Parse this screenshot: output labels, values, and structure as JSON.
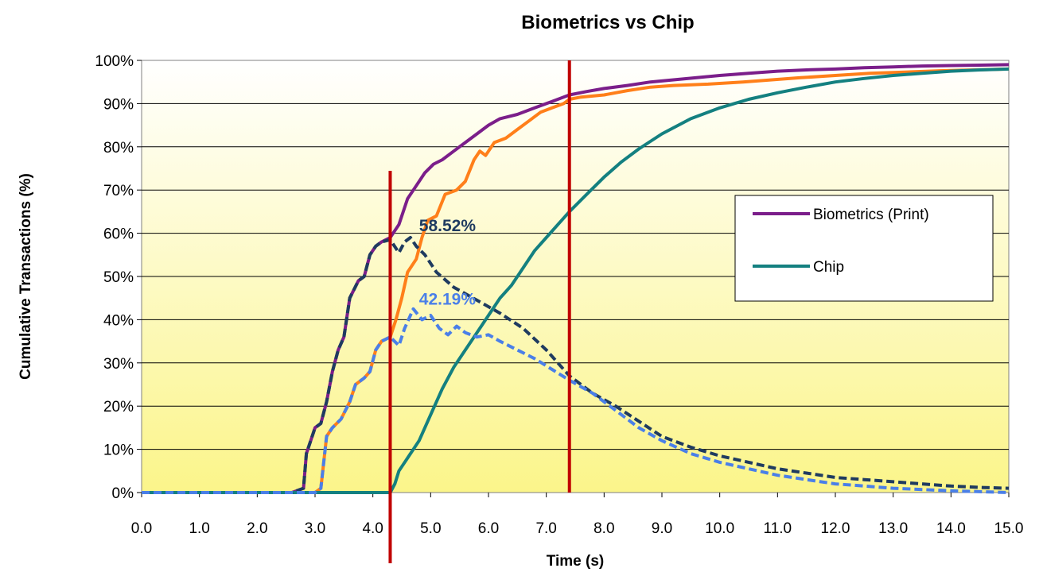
{
  "chart_data": {
    "type": "line",
    "title": "Biometrics vs Chip",
    "xlabel": "Time (s)",
    "ylabel": "Cumulative Transactions (%)",
    "xlim": [
      0,
      15
    ],
    "ylim": [
      0,
      100
    ],
    "x_ticks": [
      "0.0",
      "1.0",
      "2.0",
      "3.0",
      "4.0",
      "5.0",
      "6.0",
      "7.0",
      "8.0",
      "9.0",
      "10.0",
      "11.0",
      "12.0",
      "13.0",
      "14.0",
      "15.0"
    ],
    "y_ticks": [
      "0%",
      "10%",
      "20%",
      "30%",
      "40%",
      "50%",
      "60%",
      "70%",
      "80%",
      "90%",
      "100%"
    ],
    "grid": "horizontal",
    "legend_position": "right",
    "legend": [
      "Biometrics (Print)",
      "Chip"
    ],
    "series": [
      {
        "name": "Biometrics (Print)",
        "color": "#7B1E8A",
        "style": "solid",
        "points": [
          [
            0,
            0
          ],
          [
            2.6,
            0
          ],
          [
            2.8,
            1
          ],
          [
            2.85,
            9
          ],
          [
            3.0,
            15
          ],
          [
            3.1,
            16
          ],
          [
            3.2,
            21
          ],
          [
            3.3,
            28
          ],
          [
            3.4,
            33
          ],
          [
            3.5,
            36
          ],
          [
            3.6,
            45
          ],
          [
            3.75,
            49
          ],
          [
            3.85,
            50
          ],
          [
            3.95,
            55
          ],
          [
            4.05,
            57
          ],
          [
            4.15,
            58
          ],
          [
            4.3,
            59
          ],
          [
            4.45,
            62
          ],
          [
            4.6,
            68
          ],
          [
            4.75,
            71
          ],
          [
            4.9,
            74
          ],
          [
            5.05,
            76
          ],
          [
            5.2,
            77
          ],
          [
            5.4,
            79
          ],
          [
            5.6,
            81
          ],
          [
            5.8,
            83
          ],
          [
            6.0,
            85
          ],
          [
            6.2,
            86.5
          ],
          [
            6.5,
            87.5
          ],
          [
            6.8,
            89
          ],
          [
            7.1,
            90.5
          ],
          [
            7.4,
            92
          ],
          [
            7.7,
            92.8
          ],
          [
            8.0,
            93.5
          ],
          [
            8.4,
            94.2
          ],
          [
            8.8,
            95
          ],
          [
            9.2,
            95.5
          ],
          [
            9.6,
            96
          ],
          [
            10.0,
            96.5
          ],
          [
            10.5,
            97
          ],
          [
            11.0,
            97.5
          ],
          [
            11.5,
            97.8
          ],
          [
            12.0,
            98
          ],
          [
            12.5,
            98.3
          ],
          [
            13.0,
            98.5
          ],
          [
            13.5,
            98.7
          ],
          [
            14.0,
            98.8
          ],
          [
            14.5,
            98.9
          ],
          [
            15.0,
            99
          ]
        ]
      },
      {
        "name": "",
        "color": "#FF7F1A",
        "style": "solid",
        "points": [
          [
            0,
            0
          ],
          [
            3.0,
            0
          ],
          [
            3.1,
            1
          ],
          [
            3.2,
            13
          ],
          [
            3.3,
            15
          ],
          [
            3.45,
            17
          ],
          [
            3.6,
            21
          ],
          [
            3.7,
            25
          ],
          [
            3.85,
            26.5
          ],
          [
            3.95,
            28
          ],
          [
            4.05,
            33
          ],
          [
            4.15,
            35
          ],
          [
            4.3,
            36
          ],
          [
            4.4,
            40
          ],
          [
            4.5,
            45
          ],
          [
            4.6,
            51
          ],
          [
            4.75,
            54
          ],
          [
            4.85,
            59
          ],
          [
            4.95,
            63
          ],
          [
            5.1,
            64
          ],
          [
            5.25,
            69
          ],
          [
            5.45,
            70
          ],
          [
            5.6,
            72
          ],
          [
            5.75,
            77
          ],
          [
            5.85,
            79
          ],
          [
            5.95,
            78
          ],
          [
            6.1,
            81
          ],
          [
            6.3,
            82
          ],
          [
            6.5,
            84
          ],
          [
            6.7,
            86
          ],
          [
            6.9,
            88
          ],
          [
            7.1,
            89
          ],
          [
            7.3,
            90
          ],
          [
            7.4,
            91
          ],
          [
            7.6,
            91.5
          ],
          [
            8.0,
            92
          ],
          [
            8.4,
            93
          ],
          [
            8.8,
            93.8
          ],
          [
            9.2,
            94.2
          ],
          [
            9.8,
            94.5
          ],
          [
            10.4,
            95
          ],
          [
            10.9,
            95.5
          ],
          [
            11.4,
            96
          ],
          [
            12.0,
            96.5
          ],
          [
            12.6,
            97
          ],
          [
            13.2,
            97.3
          ],
          [
            13.8,
            97.6
          ],
          [
            14.4,
            97.8
          ],
          [
            15.0,
            98
          ]
        ]
      },
      {
        "name": "Chip",
        "color": "#148080",
        "style": "solid",
        "points": [
          [
            0,
            0
          ],
          [
            4.3,
            0
          ],
          [
            4.38,
            2
          ],
          [
            4.45,
            5
          ],
          [
            4.6,
            8
          ],
          [
            4.8,
            12
          ],
          [
            5.0,
            18
          ],
          [
            5.2,
            24
          ],
          [
            5.4,
            29
          ],
          [
            5.6,
            33
          ],
          [
            5.8,
            37
          ],
          [
            6.0,
            41
          ],
          [
            6.2,
            45
          ],
          [
            6.4,
            48
          ],
          [
            6.6,
            52
          ],
          [
            6.8,
            56
          ],
          [
            7.0,
            59
          ],
          [
            7.2,
            62
          ],
          [
            7.4,
            65
          ],
          [
            7.7,
            69
          ],
          [
            8.0,
            73
          ],
          [
            8.3,
            76.5
          ],
          [
            8.6,
            79.5
          ],
          [
            9.0,
            83
          ],
          [
            9.5,
            86.5
          ],
          [
            10.0,
            89
          ],
          [
            10.5,
            91
          ],
          [
            11.0,
            92.5
          ],
          [
            11.5,
            93.8
          ],
          [
            12.0,
            95
          ],
          [
            12.5,
            95.8
          ],
          [
            13.0,
            96.5
          ],
          [
            13.5,
            97
          ],
          [
            14.0,
            97.5
          ],
          [
            14.5,
            97.8
          ],
          [
            15.0,
            98
          ]
        ]
      },
      {
        "name": "",
        "color": "#1F3B60",
        "style": "dashed",
        "points": [
          [
            0,
            0
          ],
          [
            2.6,
            0
          ],
          [
            2.8,
            1
          ],
          [
            2.85,
            9
          ],
          [
            3.0,
            15
          ],
          [
            3.1,
            16
          ],
          [
            3.2,
            21
          ],
          [
            3.3,
            28
          ],
          [
            3.4,
            33
          ],
          [
            3.5,
            36
          ],
          [
            3.6,
            45
          ],
          [
            3.75,
            49
          ],
          [
            3.85,
            50
          ],
          [
            3.95,
            55
          ],
          [
            4.05,
            57
          ],
          [
            4.15,
            58
          ],
          [
            4.3,
            58.5
          ],
          [
            4.45,
            55.5
          ],
          [
            4.55,
            58
          ],
          [
            4.65,
            59
          ],
          [
            4.75,
            57
          ],
          [
            4.9,
            55
          ],
          [
            5.1,
            51
          ],
          [
            5.4,
            47.5
          ],
          [
            5.8,
            44.5
          ],
          [
            6.2,
            41.5
          ],
          [
            6.6,
            38
          ],
          [
            7.0,
            33
          ],
          [
            7.4,
            27
          ],
          [
            7.8,
            23
          ],
          [
            8.2,
            20
          ],
          [
            8.6,
            16.5
          ],
          [
            9.0,
            13
          ],
          [
            9.5,
            10.5
          ],
          [
            10.0,
            8.5
          ],
          [
            10.5,
            7
          ],
          [
            11.0,
            5.5
          ],
          [
            11.5,
            4.5
          ],
          [
            12.0,
            3.5
          ],
          [
            12.5,
            3
          ],
          [
            13.0,
            2.5
          ],
          [
            13.5,
            2
          ],
          [
            14.0,
            1.5
          ],
          [
            14.5,
            1.2
          ],
          [
            15.0,
            1
          ]
        ]
      },
      {
        "name": "",
        "color": "#4A7FE8",
        "style": "dashed",
        "points": [
          [
            0,
            0
          ],
          [
            3.0,
            0
          ],
          [
            3.1,
            1
          ],
          [
            3.2,
            13
          ],
          [
            3.3,
            15
          ],
          [
            3.45,
            17
          ],
          [
            3.6,
            21
          ],
          [
            3.7,
            25
          ],
          [
            3.85,
            26.5
          ],
          [
            3.95,
            28
          ],
          [
            4.05,
            33
          ],
          [
            4.15,
            35
          ],
          [
            4.3,
            36
          ],
          [
            4.45,
            34
          ],
          [
            4.55,
            38
          ],
          [
            4.7,
            42.5
          ],
          [
            4.85,
            40
          ],
          [
            5.0,
            41
          ],
          [
            5.15,
            38
          ],
          [
            5.3,
            36.5
          ],
          [
            5.45,
            38.5
          ],
          [
            5.6,
            37
          ],
          [
            5.8,
            36
          ],
          [
            6.0,
            36.5
          ],
          [
            6.2,
            35
          ],
          [
            6.5,
            33
          ],
          [
            6.8,
            31
          ],
          [
            7.1,
            28.5
          ],
          [
            7.4,
            26
          ],
          [
            7.8,
            23
          ],
          [
            8.2,
            19
          ],
          [
            8.6,
            15
          ],
          [
            9.0,
            12
          ],
          [
            9.5,
            9
          ],
          [
            10.0,
            7
          ],
          [
            10.5,
            5.5
          ],
          [
            11.0,
            4
          ],
          [
            11.5,
            3
          ],
          [
            12.0,
            2
          ],
          [
            12.5,
            1.5
          ],
          [
            13.0,
            1
          ],
          [
            13.5,
            0.7
          ],
          [
            14.0,
            0.4
          ],
          [
            14.5,
            0.2
          ],
          [
            15.0,
            0
          ]
        ]
      }
    ],
    "vertical_markers": [
      {
        "x": 4.3,
        "color": "#C00000"
      },
      {
        "x": 7.4,
        "color": "#C00000"
      }
    ],
    "annotations": [
      {
        "text": "58.52%",
        "x": 4.8,
        "y": 60.5,
        "color": "#1F3B60"
      },
      {
        "text": "42.19%",
        "x": 4.8,
        "y": 43.5,
        "color": "#4A7FE8"
      }
    ]
  }
}
